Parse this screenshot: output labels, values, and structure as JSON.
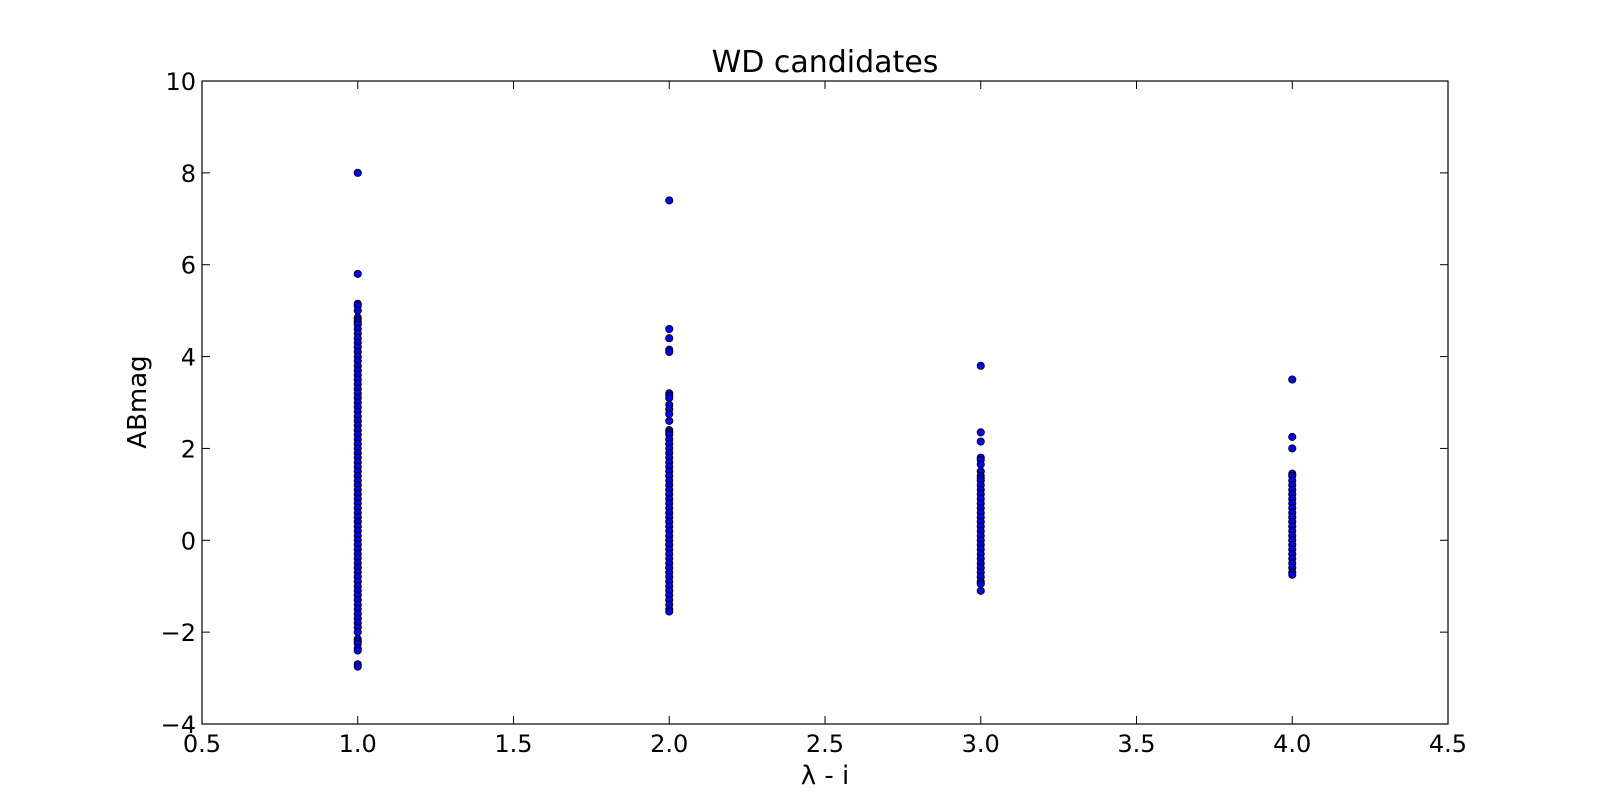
{
  "chart_data": {
    "type": "scatter",
    "title": "WD candidates",
    "xlabel": "λ - i",
    "ylabel": "ABmag",
    "xlim": [
      0.5,
      4.5
    ],
    "ylim": [
      -4,
      10
    ],
    "xticks": [
      "0.5",
      "1.0",
      "1.5",
      "2.0",
      "2.5",
      "3.0",
      "3.5",
      "4.0",
      "4.5"
    ],
    "yticks": [
      "−4",
      "−2",
      "0",
      "2",
      "4",
      "6",
      "8",
      "10"
    ],
    "grid": false,
    "legend": "none",
    "marker_color": "#0000ff",
    "marker_edge_color": "#000000",
    "series": [
      {
        "x": 1.0,
        "y": [
          8.0,
          5.8,
          5.15,
          5.1,
          5.0,
          4.85,
          4.8,
          4.75,
          4.7,
          4.6,
          4.5,
          4.4,
          4.3,
          4.2,
          4.1,
          4.0,
          3.9,
          3.8,
          3.7,
          3.6,
          3.5,
          3.4,
          3.3,
          3.2,
          3.1,
          3.0,
          2.9,
          2.8,
          2.7,
          2.6,
          2.5,
          2.4,
          2.3,
          2.2,
          2.1,
          2.0,
          1.9,
          1.8,
          1.7,
          1.6,
          1.5,
          1.4,
          1.3,
          1.2,
          1.1,
          1.0,
          0.9,
          0.8,
          0.7,
          0.6,
          0.5,
          0.4,
          0.3,
          0.2,
          0.1,
          0.0,
          -0.1,
          -0.2,
          -0.3,
          -0.4,
          -0.5,
          -0.6,
          -0.7,
          -0.8,
          -0.9,
          -1.0,
          -1.1,
          -1.2,
          -1.3,
          -1.4,
          -1.5,
          -1.6,
          -1.7,
          -1.8,
          -1.9,
          -2.0,
          -2.15,
          -2.2,
          -2.25,
          -2.35,
          -2.4,
          -2.7,
          -2.75
        ]
      },
      {
        "x": 2.0,
        "y": [
          7.4,
          4.6,
          4.4,
          4.15,
          4.1,
          3.2,
          3.15,
          3.1,
          2.95,
          2.85,
          2.75,
          2.6,
          2.4,
          2.35,
          2.3,
          2.2,
          2.1,
          2.0,
          1.9,
          1.8,
          1.7,
          1.6,
          1.5,
          1.4,
          1.3,
          1.2,
          1.1,
          1.0,
          0.9,
          0.8,
          0.7,
          0.6,
          0.5,
          0.4,
          0.3,
          0.2,
          0.1,
          0.0,
          -0.1,
          -0.2,
          -0.3,
          -0.4,
          -0.5,
          -0.6,
          -0.7,
          -0.8,
          -0.9,
          -1.0,
          -1.1,
          -1.2,
          -1.3,
          -1.4,
          -1.5,
          -1.55
        ]
      },
      {
        "x": 3.0,
        "y": [
          3.8,
          2.35,
          2.15,
          1.8,
          1.75,
          1.65,
          1.5,
          1.4,
          1.35,
          1.3,
          1.2,
          1.1,
          1.0,
          0.9,
          0.8,
          0.7,
          0.6,
          0.5,
          0.4,
          0.3,
          0.2,
          0.1,
          0.0,
          -0.1,
          -0.2,
          -0.3,
          -0.4,
          -0.5,
          -0.6,
          -0.7,
          -0.8,
          -0.9,
          -0.95,
          -1.1
        ]
      },
      {
        "x": 4.0,
        "y": [
          3.5,
          2.25,
          2.0,
          1.45,
          1.4,
          1.3,
          1.2,
          1.1,
          1.0,
          0.9,
          0.8,
          0.7,
          0.6,
          0.5,
          0.4,
          0.3,
          0.2,
          0.1,
          0.0,
          -0.1,
          -0.2,
          -0.3,
          -0.4,
          -0.5,
          -0.6,
          -0.7,
          -0.75
        ]
      }
    ]
  }
}
